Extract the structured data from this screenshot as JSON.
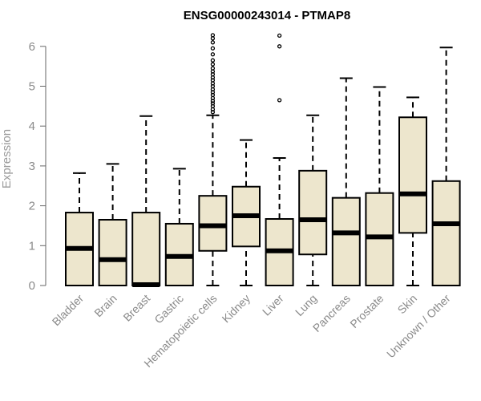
{
  "chart_data": {
    "type": "box",
    "title": "ENSG00000243014 - PTMAP8",
    "xlabel": "",
    "ylabel": "Expression",
    "ylim": [
      0,
      6.3
    ],
    "yticks": [
      "0",
      "1",
      "2",
      "3",
      "4",
      "5",
      "6"
    ],
    "grid": false,
    "box_fill": "#ede6cd",
    "categories": [
      "Bladder",
      "Brain",
      "Breast",
      "Gastric",
      "Hematopoietic cells",
      "Kidney",
      "Liver",
      "Lung",
      "Pancreas",
      "Prostate",
      "Skin",
      "Unknown / Other"
    ],
    "boxes": [
      {
        "min": 0,
        "q1": 0,
        "median": 0.93,
        "q3": 1.83,
        "max": 2.82,
        "outliers": []
      },
      {
        "min": 0,
        "q1": 0,
        "median": 0.65,
        "q3": 1.65,
        "max": 3.05,
        "outliers": []
      },
      {
        "min": 0,
        "q1": 0,
        "median": 0.02,
        "q3": 1.83,
        "max": 4.25,
        "outliers": []
      },
      {
        "min": 0,
        "q1": 0,
        "median": 0.73,
        "q3": 1.55,
        "max": 2.93,
        "outliers": []
      },
      {
        "min": 0,
        "q1": 0.87,
        "median": 1.5,
        "q3": 2.25,
        "max": 4.27,
        "outliers": [
          4.35,
          4.42,
          4.5,
          4.57,
          4.63,
          4.7,
          4.78,
          4.85,
          4.92,
          5.0,
          5.07,
          5.15,
          5.22,
          5.3,
          5.37,
          5.45,
          5.55,
          5.65,
          5.8,
          5.95,
          6.1,
          6.2,
          6.28
        ]
      },
      {
        "min": 0,
        "q1": 0.98,
        "median": 1.75,
        "q3": 2.48,
        "max": 3.65,
        "outliers": []
      },
      {
        "min": 0,
        "q1": 0,
        "median": 0.87,
        "q3": 1.67,
        "max": 3.2,
        "outliers": [
          4.65,
          6.0,
          6.27
        ]
      },
      {
        "min": 0,
        "q1": 0.78,
        "median": 1.65,
        "q3": 2.88,
        "max": 4.27,
        "outliers": []
      },
      {
        "min": 0,
        "q1": 0,
        "median": 1.32,
        "q3": 2.2,
        "max": 5.2,
        "outliers": []
      },
      {
        "min": 0,
        "q1": 0,
        "median": 1.22,
        "q3": 2.32,
        "max": 4.98,
        "outliers": []
      },
      {
        "min": 0,
        "q1": 1.32,
        "median": 2.3,
        "q3": 4.22,
        "max": 4.72,
        "outliers": []
      },
      {
        "min": 0,
        "q1": 0,
        "median": 1.55,
        "q3": 2.62,
        "max": 5.97,
        "outliers": []
      }
    ]
  }
}
